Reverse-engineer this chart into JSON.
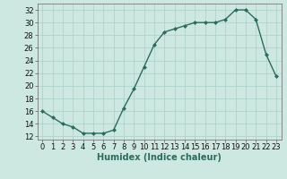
{
  "x": [
    0,
    1,
    2,
    3,
    4,
    5,
    6,
    7,
    8,
    9,
    10,
    11,
    12,
    13,
    14,
    15,
    16,
    17,
    18,
    19,
    20,
    21,
    22,
    23
  ],
  "y": [
    16,
    15,
    14,
    13.5,
    12.5,
    12.5,
    12.5,
    13,
    16.5,
    19.5,
    23,
    26.5,
    28.5,
    29,
    29.5,
    30,
    30,
    30,
    30.5,
    32,
    32,
    30.5,
    25,
    21.5
  ],
  "line_color": "#2d6b5e",
  "marker": "D",
  "marker_size": 2.0,
  "xlabel": "Humidex (Indice chaleur)",
  "xlim": [
    -0.5,
    23.5
  ],
  "ylim": [
    11.5,
    33
  ],
  "yticks": [
    12,
    14,
    16,
    18,
    20,
    22,
    24,
    26,
    28,
    30,
    32
  ],
  "xticks": [
    0,
    1,
    2,
    3,
    4,
    5,
    6,
    7,
    8,
    9,
    10,
    11,
    12,
    13,
    14,
    15,
    16,
    17,
    18,
    19,
    20,
    21,
    22,
    23
  ],
  "bg_color": "#cce8e0",
  "grid_color": "#aacfc7",
  "line_color_axis": "#2d6b5e",
  "xlabel_fontsize": 7,
  "tick_fontsize": 6,
  "linewidth": 1.0
}
